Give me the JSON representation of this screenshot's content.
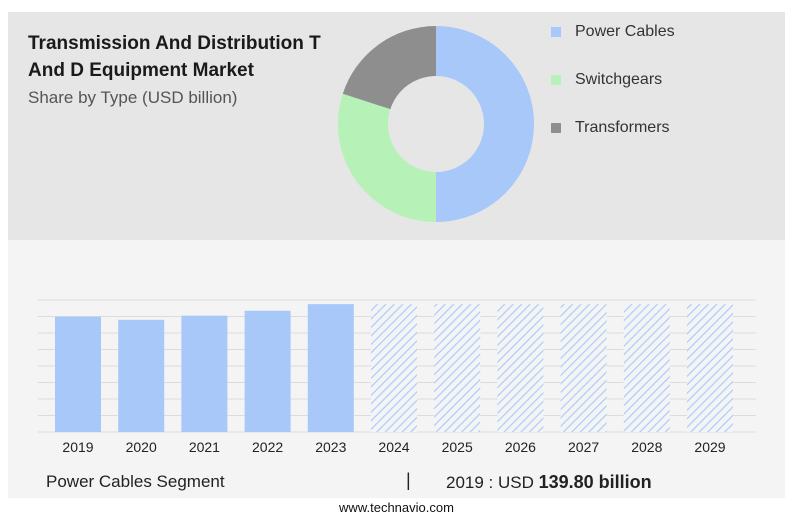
{
  "header": {
    "title_line1": "Transmission And Distribution T",
    "title_line2": "And D Equipment Market",
    "subtitle": "Share by Type (USD billion)"
  },
  "colors": {
    "power_cables": "#a8c8fa",
    "switchgears": "#b6f2b8",
    "transformers": "#8e8e8e",
    "forecast_hatch": "#a8c8fa"
  },
  "chart_data": [
    {
      "type": "pie",
      "style": "donut",
      "labels": [
        "Power Cables",
        "Switchgears",
        "Transformers"
      ],
      "values": [
        50,
        30,
        20
      ]
    },
    {
      "type": "bar",
      "categories": [
        "2019",
        "2020",
        "2021",
        "2022",
        "2023",
        "2024",
        "2025",
        "2026",
        "2027",
        "2028",
        "2029"
      ],
      "values": [
        139.8,
        136,
        141,
        147,
        155,
        155,
        155,
        155,
        155,
        155,
        155
      ],
      "forecast_from": "2024",
      "ylim": [
        0,
        160
      ],
      "grid": true,
      "xlabel": "",
      "ylabel": ""
    }
  ],
  "footer": {
    "segment_label": "Power Cables Segment",
    "separator": "|",
    "value_prefix": "2019 : USD",
    "value_bold": "139.80 billion"
  },
  "source": "www.technavio.com"
}
